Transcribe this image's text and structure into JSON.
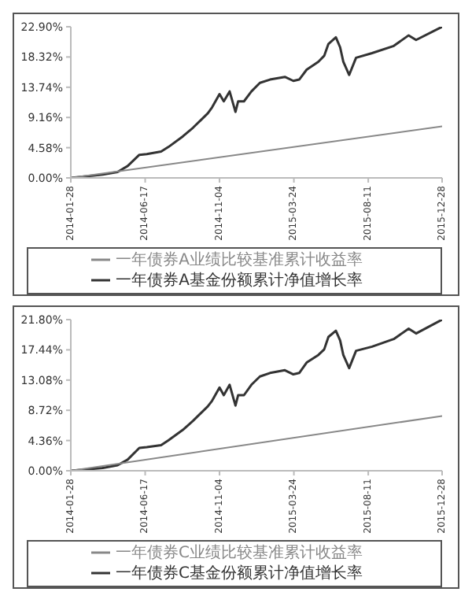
{
  "chart_data": [
    {
      "type": "line",
      "ylim": [
        0,
        22.9
      ],
      "yticks": [
        {
          "value": 0,
          "label": "0.00%"
        },
        {
          "value": 4.58,
          "label": "4.58%"
        },
        {
          "value": 9.16,
          "label": "9.16%"
        },
        {
          "value": 13.74,
          "label": "13.74%"
        },
        {
          "value": 18.32,
          "label": "18.32%"
        },
        {
          "value": 22.9,
          "label": "22.90%"
        }
      ],
      "xlim": [
        "2014-01-28",
        "2015-12-28"
      ],
      "xticks": [
        "2014-01-28",
        "2014-06-17",
        "2014-11-04",
        "2015-03-24",
        "2015-08-11",
        "2015-12-28"
      ],
      "grid": false,
      "legend": "bottom",
      "marker": "none",
      "series": [
        {
          "name": "一年债券A基金份额累计净值增长率",
          "color": "#333333",
          "x": [
            "2014-01-28",
            "2014-03-29",
            "2014-04-26",
            "2014-05-15",
            "2014-06-06",
            "2014-06-20",
            "2014-07-17",
            "2014-07-31",
            "2014-08-27",
            "2014-09-15",
            "2014-10-13",
            "2014-10-21",
            "2014-11-04",
            "2014-11-12",
            "2014-11-23",
            "2014-12-04",
            "2014-12-09",
            "2014-12-20",
            "2015-01-03",
            "2015-01-19",
            "2015-02-07",
            "2015-03-07",
            "2015-03-23",
            "2015-04-03",
            "2015-04-17",
            "2015-05-09",
            "2015-05-20",
            "2015-05-28",
            "2015-06-11",
            "2015-06-19",
            "2015-06-25",
            "2015-07-06",
            "2015-07-19",
            "2015-08-18",
            "2015-09-28",
            "2015-10-26",
            "2015-11-09",
            "2015-12-28"
          ],
          "values": [
            0,
            0.5,
            0.9,
            1.8,
            3.5,
            3.6,
            4.0,
            4.7,
            6.3,
            7.6,
            9.8,
            10.7,
            12.7,
            11.6,
            13.1,
            10.0,
            11.6,
            11.6,
            13.1,
            14.4,
            14.9,
            15.3,
            14.7,
            14.9,
            16.4,
            17.6,
            18.5,
            20.3,
            21.3,
            19.8,
            17.6,
            15.6,
            18.2,
            18.9,
            20.0,
            21.6,
            20.9,
            22.9
          ]
        },
        {
          "name": "一年债券A业绩比较基准累计收益率",
          "color": "#888888",
          "x": [
            "2014-01-28",
            "2015-12-28"
          ],
          "values": [
            0,
            7.8
          ]
        }
      ]
    },
    {
      "type": "line",
      "ylim": [
        0,
        21.8
      ],
      "yticks": [
        {
          "value": 0,
          "label": "0.00%"
        },
        {
          "value": 4.36,
          "label": "4.36%"
        },
        {
          "value": 8.72,
          "label": "8.72%"
        },
        {
          "value": 13.08,
          "label": "13.08%"
        },
        {
          "value": 17.44,
          "label": "17.44%"
        },
        {
          "value": 21.8,
          "label": "21.80%"
        }
      ],
      "xlim": [
        "2014-01-28",
        "2015-12-28"
      ],
      "xticks": [
        "2014-01-28",
        "2014-06-17",
        "2014-11-04",
        "2015-03-24",
        "2015-08-11",
        "2015-12-28"
      ],
      "grid": false,
      "legend": "bottom",
      "marker": "none",
      "series": [
        {
          "name": "一年债券C基金份额累计净值增长率",
          "color": "#333333",
          "x": [
            "2014-01-28",
            "2014-03-29",
            "2014-04-26",
            "2014-05-15",
            "2014-06-06",
            "2014-06-20",
            "2014-07-17",
            "2014-07-31",
            "2014-08-27",
            "2014-09-15",
            "2014-10-13",
            "2014-10-21",
            "2014-11-04",
            "2014-11-12",
            "2014-11-23",
            "2014-12-04",
            "2014-12-09",
            "2014-12-20",
            "2015-01-03",
            "2015-01-19",
            "2015-02-07",
            "2015-03-07",
            "2015-03-23",
            "2015-04-03",
            "2015-04-17",
            "2015-05-09",
            "2015-05-20",
            "2015-05-28",
            "2015-06-11",
            "2015-06-19",
            "2015-06-25",
            "2015-07-06",
            "2015-07-19",
            "2015-08-18",
            "2015-09-28",
            "2015-10-26",
            "2015-11-09",
            "2015-12-28"
          ],
          "values": [
            0,
            0.4,
            0.8,
            1.6,
            3.3,
            3.4,
            3.7,
            4.4,
            5.9,
            7.2,
            9.3,
            10.1,
            12.0,
            10.9,
            12.4,
            9.4,
            10.9,
            10.9,
            12.4,
            13.6,
            14.1,
            14.5,
            13.9,
            14.1,
            15.6,
            16.7,
            17.5,
            19.3,
            20.2,
            18.8,
            16.7,
            14.8,
            17.3,
            17.9,
            19.0,
            20.5,
            19.8,
            21.8
          ]
        },
        {
          "name": "一年债券C业绩比较基准累计收益率",
          "color": "#888888",
          "x": [
            "2014-01-28",
            "2015-12-28"
          ],
          "values": [
            0,
            7.9
          ]
        }
      ]
    }
  ]
}
